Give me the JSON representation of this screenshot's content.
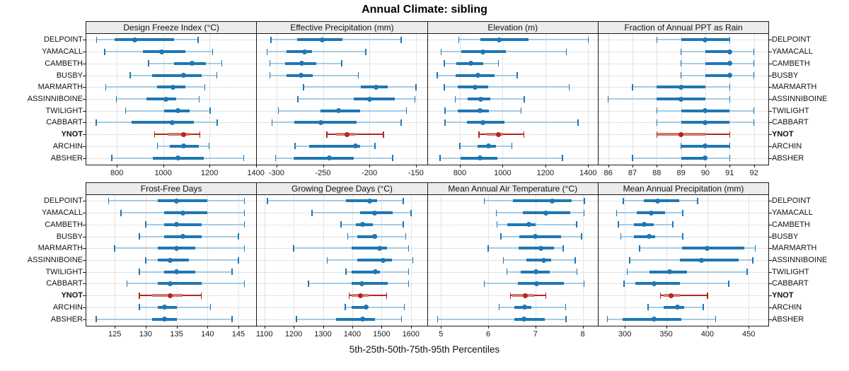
{
  "page_title": "Annual Climate: sibling",
  "caption": "5th-25th-50th-75th-95th Percentiles",
  "percentiles": [
    "5th",
    "25th",
    "50th",
    "75th",
    "95th"
  ],
  "sites": [
    "DELPOINT",
    "YAMACALL",
    "CAMBETH",
    "BUSBY",
    "MARMARTH",
    "ASSINNIBOINE",
    "TWILIGHT",
    "CABBART",
    "YNOT",
    "ARCHIN",
    "ABSHER"
  ],
  "highlight_site": "YNOT",
  "colors": {
    "series_main": "#1F77B4",
    "series_light": "#A6CBE3",
    "highlight_main": "#B0281E",
    "highlight_band": "#D1786E",
    "grid": "#C8C8C8",
    "panel_border": "#1A1A1A",
    "strip_bg": "#ECECEC"
  },
  "chart_data": [
    {
      "type": "interval-dotplot",
      "title": "Design Freeze Index (°C)",
      "row": 0,
      "col": 0,
      "xlim": [
        668,
        1402
      ],
      "ticks": [
        800,
        1000,
        1200,
        1400
      ],
      "rows": [
        {
          "site": "DELPOINT",
          "values": [
            713,
            790,
            877,
            1046,
            1150
          ]
        },
        {
          "site": "YAMACALL",
          "values": [
            748,
            912,
            993,
            1095,
            1213
          ]
        },
        {
          "site": "CAMBETH",
          "values": [
            937,
            1048,
            1126,
            1183,
            1253
          ]
        },
        {
          "site": "BUSBY",
          "values": [
            857,
            953,
            1088,
            1165,
            1232
          ]
        },
        {
          "site": "MARMARTH",
          "values": [
            752,
            972,
            1043,
            1095,
            1180
          ]
        },
        {
          "site": "ASSINNIBOINE",
          "values": [
            798,
            928,
            1013,
            1055,
            1155
          ]
        },
        {
          "site": "TWILIGHT",
          "values": [
            838,
            1003,
            1063,
            1115,
            1203
          ]
        },
        {
          "site": "CABBART",
          "values": [
            710,
            863,
            1038,
            1132,
            1233
          ]
        },
        {
          "site": "YNOT",
          "values": [
            963,
            1018,
            1087,
            1113,
            1158
          ]
        },
        {
          "site": "ARCHIN",
          "values": [
            975,
            1028,
            1088,
            1155,
            1198
          ]
        },
        {
          "site": "ABSHER",
          "values": [
            778,
            955,
            1063,
            1175,
            1347
          ]
        }
      ]
    },
    {
      "type": "interval-dotplot",
      "title": "Effective Precipitation (mm)",
      "row": 0,
      "col": 1,
      "xlim": [
        -321,
        -138
      ],
      "ticks": [
        -300,
        -250,
        -200,
        -150
      ],
      "rows": [
        {
          "site": "DELPOINT",
          "values": [
            -306,
            -278,
            -251,
            -229,
            -166
          ]
        },
        {
          "site": "YAMACALL",
          "values": [
            -310,
            -289,
            -270,
            -262,
            -204
          ]
        },
        {
          "site": "CAMBETH",
          "values": [
            -307,
            -291,
            -273,
            -257,
            -230
          ]
        },
        {
          "site": "BUSBY",
          "values": [
            -307,
            -289,
            -274,
            -261,
            -212
          ]
        },
        {
          "site": "MARMARTH",
          "values": [
            -271,
            -209,
            -193,
            -180,
            -150
          ]
        },
        {
          "site": "ASSINNIBOINE",
          "values": [
            -277,
            -217,
            -200,
            -173,
            -151
          ]
        },
        {
          "site": "TWILIGHT",
          "values": [
            -298,
            -253,
            -233,
            -210,
            -160
          ]
        },
        {
          "site": "CABBART",
          "values": [
            -305,
            -281,
            -252,
            -214,
            -166
          ]
        },
        {
          "site": "YNOT",
          "values": [
            -246,
            -236,
            -224,
            -215,
            -185
          ]
        },
        {
          "site": "ARCHIN",
          "values": [
            -280,
            -265,
            -215,
            -210,
            -194
          ]
        },
        {
          "site": "ABSHER",
          "values": [
            -301,
            -282,
            -243,
            -217,
            -175
          ]
        }
      ]
    },
    {
      "type": "interval-dotplot",
      "title": "Elevation (m)",
      "row": 0,
      "col": 2,
      "xlim": [
        650,
        1445
      ],
      "ticks": [
        800,
        1000,
        1200,
        1400
      ],
      "rows": [
        {
          "site": "DELPOINT",
          "values": [
            795,
            897,
            985,
            1120,
            1400
          ]
        },
        {
          "site": "YAMACALL",
          "values": [
            712,
            806,
            909,
            1015,
            1298
          ]
        },
        {
          "site": "CAMBETH",
          "values": [
            728,
            785,
            851,
            910,
            981
          ]
        },
        {
          "site": "BUSBY",
          "values": [
            695,
            780,
            884,
            962,
            1069
          ]
        },
        {
          "site": "MARMARTH",
          "values": [
            728,
            789,
            871,
            933,
            1311
          ]
        },
        {
          "site": "ASSINNIBOINE",
          "values": [
            778,
            836,
            897,
            941,
            1102
          ]
        },
        {
          "site": "TWILIGHT",
          "values": [
            730,
            791,
            893,
            936,
            1086
          ]
        },
        {
          "site": "CABBART",
          "values": [
            730,
            833,
            908,
            1008,
            1352
          ]
        },
        {
          "site": "YNOT",
          "values": [
            889,
            927,
            982,
            1002,
            1100
          ]
        },
        {
          "site": "ARCHIN",
          "values": [
            800,
            882,
            933,
            969,
            1044
          ]
        },
        {
          "site": "ABSHER",
          "values": [
            708,
            802,
            894,
            974,
            1280
          ]
        }
      ]
    },
    {
      "type": "interval-dotplot",
      "title": "Fraction of Annual PPT as Rain",
      "row": 0,
      "col": 3,
      "xlim": [
        85.6,
        92.6
      ],
      "ticks": [
        86,
        87,
        88,
        89,
        90,
        91,
        92
      ],
      "rows": [
        {
          "site": "DELPOINT",
          "values": [
            88,
            89,
            90,
            91,
            91
          ]
        },
        {
          "site": "YAMACALL",
          "values": [
            89,
            90,
            91,
            91,
            92
          ]
        },
        {
          "site": "CAMBETH",
          "values": [
            89,
            90,
            91,
            91,
            92
          ]
        },
        {
          "site": "BUSBY",
          "values": [
            89,
            90,
            91,
            91,
            92
          ]
        },
        {
          "site": "MARMARTH",
          "values": [
            87,
            88,
            89,
            90,
            91
          ]
        },
        {
          "site": "ASSINNIBOINE",
          "values": [
            86,
            88,
            89,
            90,
            91
          ]
        },
        {
          "site": "TWILIGHT",
          "values": [
            88,
            89,
            90,
            91,
            92
          ]
        },
        {
          "site": "CABBART",
          "values": [
            88,
            89,
            90,
            91,
            92
          ]
        },
        {
          "site": "YNOT",
          "values": [
            88,
            88,
            89,
            90,
            91
          ]
        },
        {
          "site": "ARCHIN",
          "values": [
            89,
            89,
            90,
            91,
            91
          ]
        },
        {
          "site": "ABSHER",
          "values": [
            87,
            89,
            90,
            90,
            91
          ]
        }
      ]
    },
    {
      "type": "interval-dotplot",
      "title": "Frost-Free Days",
      "row": 1,
      "col": 0,
      "xlim": [
        120.4,
        147.9
      ],
      "ticks": [
        125,
        130,
        135,
        140,
        145
      ],
      "rows": [
        {
          "site": "DELPOINT",
          "values": [
            124,
            132,
            135,
            140,
            146
          ]
        },
        {
          "site": "YAMACALL",
          "values": [
            126,
            133,
            136,
            140,
            146
          ]
        },
        {
          "site": "CAMBETH",
          "values": [
            130,
            133,
            135,
            139,
            146
          ]
        },
        {
          "site": "BUSBY",
          "values": [
            129,
            133,
            136,
            139,
            145
          ]
        },
        {
          "site": "MARMARTH",
          "values": [
            125,
            132,
            135,
            138,
            146
          ]
        },
        {
          "site": "ASSINNIBOINE",
          "values": [
            130,
            132,
            134,
            137,
            145
          ]
        },
        {
          "site": "TWILIGHT",
          "values": [
            129,
            133,
            135,
            138,
            144
          ]
        },
        {
          "site": "CABBART",
          "values": [
            127,
            132,
            134,
            139,
            146
          ]
        },
        {
          "site": "YNOT",
          "values": [
            129,
            131,
            134,
            136,
            139
          ]
        },
        {
          "site": "ARCHIN",
          "values": [
            129,
            132,
            133,
            135,
            140.5
          ]
        },
        {
          "site": "ABSHER",
          "values": [
            122,
            131,
            133,
            135,
            144
          ]
        }
      ]
    },
    {
      "type": "interval-dotplot",
      "title": "Growing Degree Days (°C)",
      "row": 1,
      "col": 1,
      "xlim": [
        1075,
        1655
      ],
      "ticks": [
        1100,
        1200,
        1300,
        1400,
        1500,
        1600
      ],
      "rows": [
        {
          "site": "DELPOINT",
          "values": [
            1110,
            1378,
            1460,
            1484,
            1574
          ]
        },
        {
          "site": "YAMACALL",
          "values": [
            1262,
            1426,
            1477,
            1538,
            1600
          ]
        },
        {
          "site": "CAMBETH",
          "values": [
            1362,
            1412,
            1435,
            1469,
            1574
          ]
        },
        {
          "site": "BUSBY",
          "values": [
            1385,
            1418,
            1476,
            1485,
            1582
          ]
        },
        {
          "site": "MARMARTH",
          "values": [
            1200,
            1398,
            1494,
            1518,
            1592
          ]
        },
        {
          "site": "ASSINNIBOINE",
          "values": [
            1315,
            1416,
            1505,
            1536,
            1606
          ]
        },
        {
          "site": "TWILIGHT",
          "values": [
            1378,
            1398,
            1478,
            1494,
            1592
          ]
        },
        {
          "site": "CABBART",
          "values": [
            1250,
            1398,
            1432,
            1520,
            1592
          ]
        },
        {
          "site": "YNOT",
          "values": [
            1389,
            1398,
            1429,
            1456,
            1517
          ]
        },
        {
          "site": "ARCHIN",
          "values": [
            1376,
            1398,
            1448,
            1454,
            1578
          ]
        },
        {
          "site": "ABSHER",
          "values": [
            1210,
            1344,
            1434,
            1478,
            1568
          ]
        }
      ]
    },
    {
      "type": "interval-dotplot",
      "title": "Mean Annual Air Temperature (°C)",
      "row": 1,
      "col": 2,
      "xlim": [
        4.72,
        8.32
      ],
      "ticks": [
        5,
        6,
        7,
        8
      ],
      "rows": [
        {
          "site": "DELPOINT",
          "values": [
            5.92,
            6.52,
            7.35,
            7.77,
            8.04
          ]
        },
        {
          "site": "YAMACALL",
          "values": [
            6.17,
            6.73,
            7.22,
            7.73,
            8.03
          ]
        },
        {
          "site": "CAMBETH",
          "values": [
            6.19,
            6.41,
            6.86,
            7.0,
            7.87
          ]
        },
        {
          "site": "BUSBY",
          "values": [
            6.27,
            6.66,
            7.0,
            7.54,
            7.98
          ]
        },
        {
          "site": "MARMARTH",
          "values": [
            6.0,
            6.64,
            7.11,
            7.39,
            7.59
          ]
        },
        {
          "site": "ASSINNIBOINE",
          "values": [
            6.32,
            6.81,
            7.17,
            7.34,
            7.84
          ]
        },
        {
          "site": "TWILIGHT",
          "values": [
            6.4,
            6.69,
            7.01,
            7.3,
            7.88
          ]
        },
        {
          "site": "CABBART",
          "values": [
            5.92,
            6.63,
            7.03,
            7.6,
            8.03
          ]
        },
        {
          "site": "YNOT",
          "values": [
            6.47,
            6.51,
            6.79,
            6.97,
            7.22
          ]
        },
        {
          "site": "ARCHIN",
          "values": [
            6.23,
            6.56,
            6.77,
            6.92,
            7.64
          ]
        },
        {
          "site": "ABSHER",
          "values": [
            4.93,
            6.56,
            6.76,
            7.2,
            7.65
          ]
        }
      ]
    },
    {
      "type": "interval-dotplot",
      "title": "Mean Annual Precipitation (mm)",
      "row": 1,
      "col": 3,
      "xlim": [
        268,
        474
      ],
      "ticks": [
        300,
        350,
        400,
        450
      ],
      "rows": [
        {
          "site": "DELPOINT",
          "values": [
            298,
            323,
            340,
            366,
            388
          ]
        },
        {
          "site": "YAMACALL",
          "values": [
            290,
            314,
            332,
            349,
            370
          ]
        },
        {
          "site": "CAMBETH",
          "values": [
            292,
            311,
            323,
            335,
            358
          ]
        },
        {
          "site": "BUSBY",
          "values": [
            295,
            311,
            329,
            337,
            370
          ]
        },
        {
          "site": "MARMARTH",
          "values": [
            318,
            369,
            400,
            445,
            458
          ]
        },
        {
          "site": "ASSINNIBOINE",
          "values": [
            306,
            367,
            393,
            438,
            455
          ]
        },
        {
          "site": "TWILIGHT",
          "values": [
            303,
            330,
            354,
            375,
            448
          ]
        },
        {
          "site": "CABBART",
          "values": [
            299,
            313,
            335,
            367,
            426
          ]
        },
        {
          "site": "YNOT",
          "values": [
            343,
            347,
            356,
            367,
            400
          ]
        },
        {
          "site": "ARCHIN",
          "values": [
            328,
            347,
            364,
            372,
            395
          ]
        },
        {
          "site": "ABSHER",
          "values": [
            279,
            297,
            335,
            368,
            410
          ]
        }
      ]
    }
  ]
}
